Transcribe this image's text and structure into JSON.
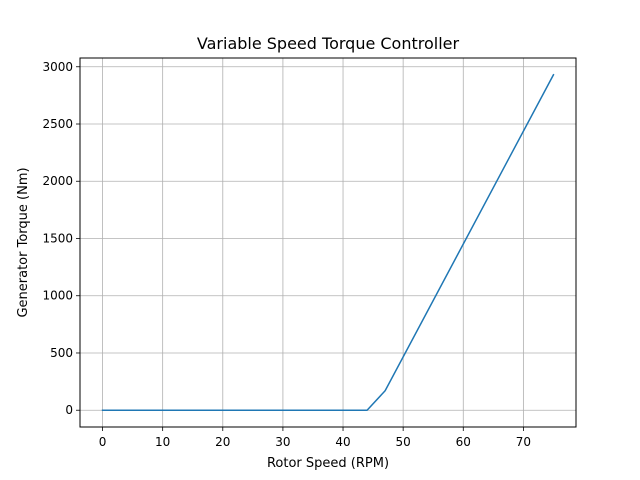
{
  "chart_data": {
    "type": "line",
    "title": "Variable Speed Torque Controller",
    "xlabel": "Rotor Speed (RPM)",
    "ylabel": "Generator Torque (Nm)",
    "xlim": [
      -3.75,
      78.75
    ],
    "ylim": [
      -146.5,
      3076.5
    ],
    "xticks": [
      0,
      10,
      20,
      30,
      40,
      50,
      60,
      70
    ],
    "yticks": [
      0,
      500,
      1000,
      1500,
      2000,
      2500,
      3000
    ],
    "grid": true,
    "series": [
      {
        "color": "#1f77b4",
        "x": [
          0,
          44,
          47,
          75
        ],
        "y": [
          0,
          0,
          170,
          2930
        ]
      }
    ]
  }
}
